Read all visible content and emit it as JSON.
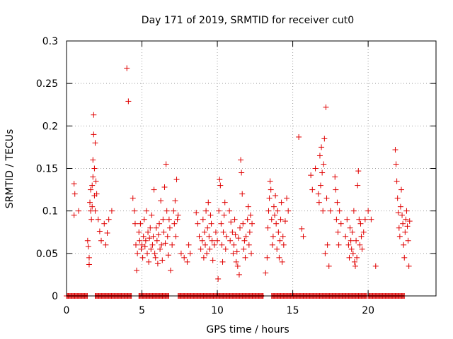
{
  "chart_data": {
    "type": "scatter",
    "title": "Day 171 of 2019, SRMTID for receiver cut0",
    "xlabel": "GPS time / hours",
    "ylabel": "SRMTID / TECUs",
    "xlim": [
      0,
      24.5
    ],
    "ylim": [
      0,
      0.3
    ],
    "x_ticks": [
      0,
      5,
      10,
      15,
      20
    ],
    "x_tick_labels": [
      "0",
      "5",
      "10",
      "15",
      "20"
    ],
    "y_ticks": [
      0,
      0.05,
      0.1,
      0.15,
      0.2,
      0.25,
      0.3
    ],
    "y_tick_labels": [
      "0",
      "0.05",
      "0.1",
      "0.15",
      "0.2",
      "0.25",
      "0.3"
    ],
    "grid": true,
    "marker": "plus",
    "color": "#e00000",
    "series": [
      {
        "name": "SRMTID",
        "points": [
          [
            0.5,
            0.132
          ],
          [
            0.55,
            0.12
          ],
          [
            0.5,
            0.095
          ],
          [
            0.8,
            0.1
          ],
          [
            1.4,
            0.065
          ],
          [
            1.45,
            0.058
          ],
          [
            1.5,
            0.037
          ],
          [
            1.5,
            0.045
          ],
          [
            1.55,
            0.11
          ],
          [
            1.6,
            0.125
          ],
          [
            1.6,
            0.1
          ],
          [
            1.65,
            0.09
          ],
          [
            1.7,
            0.13
          ],
          [
            1.7,
            0.105
          ],
          [
            1.75,
            0.14
          ],
          [
            1.75,
            0.16
          ],
          [
            1.8,
            0.19
          ],
          [
            1.8,
            0.213
          ],
          [
            1.85,
            0.15
          ],
          [
            1.85,
            0.118
          ],
          [
            1.9,
            0.18
          ],
          [
            1.9,
            0.1
          ],
          [
            1.95,
            0.135
          ],
          [
            2.0,
            0.12
          ],
          [
            2.1,
            0.09
          ],
          [
            2.2,
            0.076
          ],
          [
            2.3,
            0.065
          ],
          [
            2.5,
            0.085
          ],
          [
            2.6,
            0.06
          ],
          [
            2.7,
            0.074
          ],
          [
            2.8,
            0.09
          ],
          [
            3.0,
            0.1
          ],
          [
            4.0,
            0.268
          ],
          [
            4.1,
            0.229
          ],
          [
            4.4,
            0.115
          ],
          [
            4.5,
            0.1
          ],
          [
            4.55,
            0.085
          ],
          [
            4.6,
            0.06
          ],
          [
            4.65,
            0.03
          ],
          [
            4.7,
            0.05
          ],
          [
            4.8,
            0.075
          ],
          [
            4.85,
            0.065
          ],
          [
            4.9,
            0.085
          ],
          [
            4.95,
            0.055
          ],
          [
            5.0,
            0.06
          ],
          [
            5.05,
            0.045
          ],
          [
            5.1,
            0.07
          ],
          [
            5.15,
            0.09
          ],
          [
            5.2,
            0.058
          ],
          [
            5.25,
            0.065
          ],
          [
            5.3,
            0.1
          ],
          [
            5.35,
            0.05
          ],
          [
            5.4,
            0.075
          ],
          [
            5.45,
            0.04
          ],
          [
            5.5,
            0.068
          ],
          [
            5.55,
            0.08
          ],
          [
            5.6,
            0.055
          ],
          [
            5.65,
            0.095
          ],
          [
            5.7,
            0.06
          ],
          [
            5.75,
            0.07
          ],
          [
            5.8,
            0.125
          ],
          [
            5.85,
            0.05
          ],
          [
            5.9,
            0.045
          ],
          [
            5.95,
            0.08
          ],
          [
            6.0,
            0.065
          ],
          [
            6.05,
            0.038
          ],
          [
            6.1,
            0.072
          ],
          [
            6.15,
            0.085
          ],
          [
            6.2,
            0.055
          ],
          [
            6.25,
            0.112
          ],
          [
            6.3,
            0.06
          ],
          [
            6.35,
            0.042
          ],
          [
            6.4,
            0.09
          ],
          [
            6.45,
            0.075
          ],
          [
            6.5,
            0.128
          ],
          [
            6.55,
            0.062
          ],
          [
            6.6,
            0.155
          ],
          [
            6.65,
            0.1
          ],
          [
            6.7,
            0.07
          ],
          [
            6.75,
            0.048
          ],
          [
            6.8,
            0.09
          ],
          [
            6.85,
            0.08
          ],
          [
            6.9,
            0.03
          ],
          [
            7.0,
            0.06
          ],
          [
            7.1,
            0.1
          ],
          [
            7.15,
            0.085
          ],
          [
            7.2,
            0.112
          ],
          [
            7.25,
            0.07
          ],
          [
            7.3,
            0.137
          ],
          [
            7.35,
            0.09
          ],
          [
            7.4,
            0.095
          ],
          [
            7.6,
            0.05
          ],
          [
            7.8,
            0.045
          ],
          [
            8.0,
            0.04
          ],
          [
            8.1,
            0.06
          ],
          [
            8.2,
            0.05
          ],
          [
            8.6,
            0.098
          ],
          [
            8.7,
            0.085
          ],
          [
            8.8,
            0.07
          ],
          [
            8.9,
            0.055
          ],
          [
            9.0,
            0.065
          ],
          [
            9.05,
            0.09
          ],
          [
            9.1,
            0.045
          ],
          [
            9.15,
            0.075
          ],
          [
            9.2,
            0.06
          ],
          [
            9.25,
            0.1
          ],
          [
            9.3,
            0.05
          ],
          [
            9.35,
            0.08
          ],
          [
            9.4,
            0.11
          ],
          [
            9.45,
            0.07
          ],
          [
            9.5,
            0.055
          ],
          [
            9.55,
            0.095
          ],
          [
            9.6,
            0.085
          ],
          [
            9.65,
            0.065
          ],
          [
            9.7,
            0.042
          ],
          [
            9.8,
            0.06
          ],
          [
            9.9,
            0.075
          ],
          [
            10.0,
            0.065
          ],
          [
            10.05,
            0.02
          ],
          [
            10.1,
            0.1
          ],
          [
            10.15,
            0.137
          ],
          [
            10.2,
            0.13
          ],
          [
            10.25,
            0.085
          ],
          [
            10.3,
            0.06
          ],
          [
            10.35,
            0.04
          ],
          [
            10.4,
            0.075
          ],
          [
            10.45,
            0.095
          ],
          [
            10.5,
            0.11
          ],
          [
            10.55,
            0.055
          ],
          [
            10.6,
            0.07
          ],
          [
            10.8,
            0.1
          ],
          [
            10.85,
            0.065
          ],
          [
            10.9,
            0.087
          ],
          [
            11.0,
            0.075
          ],
          [
            11.05,
            0.05
          ],
          [
            11.1,
            0.06
          ],
          [
            11.15,
            0.09
          ],
          [
            11.2,
            0.072
          ],
          [
            11.25,
            0.04
          ],
          [
            11.3,
            0.052
          ],
          [
            11.35,
            0.035
          ],
          [
            11.4,
            0.068
          ],
          [
            11.45,
            0.025
          ],
          [
            11.5,
            0.08
          ],
          [
            11.55,
            0.16
          ],
          [
            11.6,
            0.145
          ],
          [
            11.65,
            0.12
          ],
          [
            11.7,
            0.085
          ],
          [
            11.75,
            0.055
          ],
          [
            11.8,
            0.065
          ],
          [
            11.85,
            0.045
          ],
          [
            11.9,
            0.07
          ],
          [
            12.0,
            0.09
          ],
          [
            12.05,
            0.105
          ],
          [
            12.1,
            0.06
          ],
          [
            12.15,
            0.075
          ],
          [
            12.2,
            0.095
          ],
          [
            12.25,
            0.05
          ],
          [
            12.3,
            0.085
          ],
          [
            13.2,
            0.027
          ],
          [
            13.3,
            0.045
          ],
          [
            13.35,
            0.08
          ],
          [
            13.4,
            0.1
          ],
          [
            13.45,
            0.115
          ],
          [
            13.5,
            0.135
          ],
          [
            13.55,
            0.125
          ],
          [
            13.6,
            0.09
          ],
          [
            13.65,
            0.06
          ],
          [
            13.7,
            0.07
          ],
          [
            13.75,
            0.105
          ],
          [
            13.8,
            0.095
          ],
          [
            13.85,
            0.118
          ],
          [
            13.9,
            0.085
          ],
          [
            13.95,
            0.055
          ],
          [
            14.0,
            0.1
          ],
          [
            14.05,
            0.075
          ],
          [
            14.1,
            0.045
          ],
          [
            14.15,
            0.065
          ],
          [
            14.2,
            0.09
          ],
          [
            14.25,
            0.11
          ],
          [
            14.3,
            0.04
          ],
          [
            14.35,
            0.07
          ],
          [
            14.4,
            0.06
          ],
          [
            14.5,
            0.088
          ],
          [
            14.6,
            0.115
          ],
          [
            14.7,
            0.1
          ],
          [
            15.4,
            0.187
          ],
          [
            15.6,
            0.079
          ],
          [
            15.7,
            0.07
          ],
          [
            16.2,
            0.142
          ],
          [
            16.3,
            0.125
          ],
          [
            16.5,
            0.15
          ],
          [
            16.7,
            0.12
          ],
          [
            16.75,
            0.11
          ],
          [
            16.8,
            0.165
          ],
          [
            16.85,
            0.13
          ],
          [
            16.9,
            0.175
          ],
          [
            16.95,
            0.145
          ],
          [
            17.0,
            0.1
          ],
          [
            17.05,
            0.155
          ],
          [
            17.1,
            0.185
          ],
          [
            17.15,
            0.05
          ],
          [
            17.2,
            0.222
          ],
          [
            17.25,
            0.115
          ],
          [
            17.3,
            0.06
          ],
          [
            17.4,
            0.035
          ],
          [
            17.5,
            0.1
          ],
          [
            17.8,
            0.14
          ],
          [
            17.85,
            0.125
          ],
          [
            17.9,
            0.09
          ],
          [
            17.95,
            0.11
          ],
          [
            18.0,
            0.075
          ],
          [
            18.05,
            0.06
          ],
          [
            18.1,
            0.1
          ],
          [
            18.2,
            0.085
          ],
          [
            18.5,
            0.07
          ],
          [
            18.6,
            0.09
          ],
          [
            18.7,
            0.06
          ],
          [
            18.75,
            0.045
          ],
          [
            18.8,
            0.08
          ],
          [
            18.85,
            0.065
          ],
          [
            18.9,
            0.055
          ],
          [
            18.95,
            0.075
          ],
          [
            19.0,
            0.05
          ],
          [
            19.05,
            0.1
          ],
          [
            19.1,
            0.04
          ],
          [
            19.15,
            0.035
          ],
          [
            19.2,
            0.065
          ],
          [
            19.25,
            0.045
          ],
          [
            19.3,
            0.13
          ],
          [
            19.35,
            0.147
          ],
          [
            19.4,
            0.09
          ],
          [
            19.45,
            0.06
          ],
          [
            19.5,
            0.085
          ],
          [
            19.55,
            0.07
          ],
          [
            19.6,
            0.055
          ],
          [
            19.7,
            0.075
          ],
          [
            19.8,
            0.09
          ],
          [
            20.0,
            0.1
          ],
          [
            20.2,
            0.09
          ],
          [
            20.5,
            0.035
          ],
          [
            21.8,
            0.172
          ],
          [
            21.85,
            0.155
          ],
          [
            21.9,
            0.135
          ],
          [
            21.95,
            0.115
          ],
          [
            22.0,
            0.098
          ],
          [
            22.05,
            0.08
          ],
          [
            22.1,
            0.07
          ],
          [
            22.15,
            0.105
          ],
          [
            22.2,
            0.125
          ],
          [
            22.25,
            0.095
          ],
          [
            22.3,
            0.085
          ],
          [
            22.35,
            0.06
          ],
          [
            22.4,
            0.045
          ],
          [
            22.45,
            0.075
          ],
          [
            22.5,
            0.09
          ],
          [
            22.55,
            0.1
          ],
          [
            22.6,
            0.082
          ],
          [
            22.65,
            0.065
          ],
          [
            22.7,
            0.035
          ],
          [
            22.75,
            0.088
          ]
        ]
      }
    ],
    "zero_line": {
      "y": 0,
      "x_ranges": [
        [
          0,
          1.4
        ],
        [
          1.9,
          4.3
        ],
        [
          4.8,
          6.8
        ],
        [
          7.4,
          13.1
        ],
        [
          13.6,
          19.9
        ],
        [
          20.0,
          22.4
        ]
      ]
    }
  }
}
